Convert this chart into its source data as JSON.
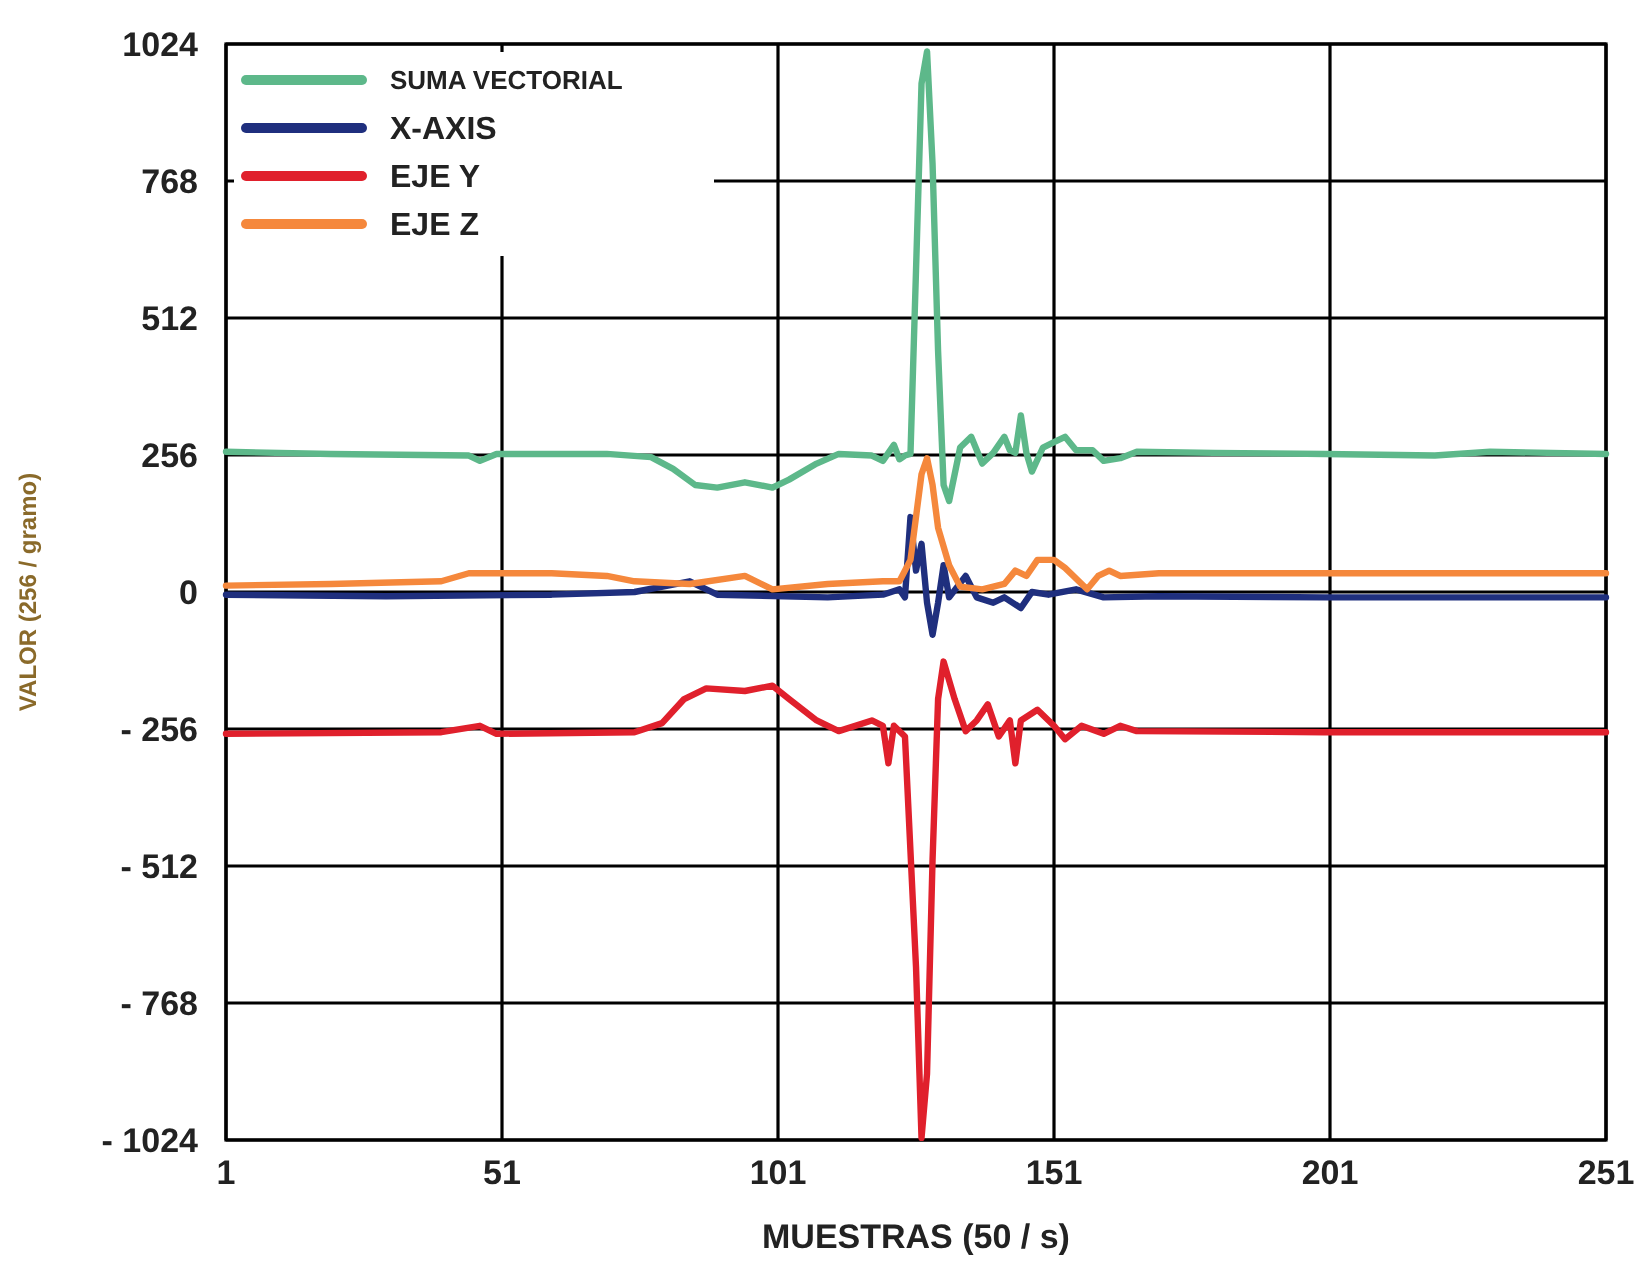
{
  "chart_data": {
    "type": "line",
    "xlabel": "MUESTRAS (50 / s)",
    "ylabel": "VALOR (256 / gramo)",
    "xlim": [
      1,
      251
    ],
    "xticks": [
      1,
      51,
      101,
      151,
      201,
      251
    ],
    "ylim": [
      -1024,
      1024
    ],
    "yticks": [
      {
        "value": -1024,
        "label": "- 1024"
      },
      {
        "value": -768,
        "label": "- 768"
      },
      {
        "value": -512,
        "label": "- 512"
      },
      {
        "value": -256,
        "label": "- 256"
      },
      0,
      256,
      512,
      768,
      1024
    ],
    "grid": true,
    "legend": "top left",
    "line_style": "solid",
    "marker": "none",
    "series": [
      {
        "name": "SUMA VECTORIAL",
        "color": "#5db88a",
        "x": [
          1,
          20,
          45,
          47,
          50,
          70,
          78,
          82,
          86,
          90,
          95,
          100,
          103,
          108,
          112,
          118,
          120,
          122,
          123,
          124,
          125,
          126,
          127,
          128,
          129,
          130,
          131,
          132,
          134,
          136,
          138,
          140,
          142,
          143,
          144,
          145,
          146,
          147,
          149,
          151,
          153,
          155,
          158,
          160,
          163,
          166,
          180,
          200,
          220,
          230,
          251
        ],
        "values": [
          262,
          258,
          255,
          245,
          258,
          258,
          252,
          230,
          200,
          195,
          205,
          195,
          210,
          240,
          258,
          255,
          245,
          275,
          248,
          255,
          258,
          600,
          950,
          1010,
          800,
          450,
          200,
          170,
          270,
          290,
          240,
          260,
          290,
          265,
          260,
          330,
          260,
          225,
          270,
          280,
          290,
          265,
          265,
          245,
          250,
          262,
          260,
          258,
          255,
          262,
          258
        ]
      },
      {
        "name": "X-AXIS",
        "color": "#1f2f7e",
        "x": [
          1,
          30,
          60,
          75,
          85,
          90,
          110,
          120,
          123,
          124,
          125,
          126,
          127,
          128,
          129,
          130,
          131,
          132,
          135,
          137,
          140,
          142,
          145,
          147,
          150,
          155,
          160,
          170,
          200,
          251
        ],
        "values": [
          -5,
          -8,
          -5,
          0,
          20,
          -5,
          -10,
          -5,
          5,
          -10,
          140,
          40,
          90,
          -20,
          -80,
          -20,
          50,
          -10,
          30,
          -10,
          -20,
          -10,
          -30,
          0,
          -5,
          5,
          -10,
          -8,
          -10,
          -10
        ]
      },
      {
        "name": "EJE Y",
        "color": "#e0202c",
        "x": [
          1,
          40,
          47,
          50,
          75,
          80,
          84,
          88,
          95,
          100,
          103,
          108,
          112,
          118,
          120,
          121,
          122,
          124,
          126,
          127,
          128,
          129,
          130,
          131,
          133,
          135,
          137,
          139,
          141,
          143,
          144,
          145,
          148,
          151,
          153,
          156,
          160,
          163,
          166,
          200,
          251
        ],
        "values": [
          -265,
          -262,
          -250,
          -265,
          -262,
          -245,
          -200,
          -180,
          -185,
          -175,
          -200,
          -240,
          -260,
          -240,
          -250,
          -320,
          -250,
          -270,
          -700,
          -1020,
          -900,
          -500,
          -200,
          -130,
          -200,
          -260,
          -240,
          -210,
          -270,
          -240,
          -320,
          -240,
          -220,
          -250,
          -275,
          -250,
          -265,
          -250,
          -260,
          -262,
          -262
        ]
      },
      {
        "name": "EJE Z",
        "color": "#f5883c",
        "x": [
          1,
          20,
          40,
          45,
          60,
          70,
          75,
          85,
          95,
          100,
          110,
          120,
          123,
          125,
          127,
          128,
          129,
          130,
          132,
          134,
          138,
          142,
          144,
          146,
          148,
          151,
          153,
          157,
          159,
          161,
          163,
          170,
          200,
          251
        ],
        "values": [
          12,
          15,
          20,
          35,
          35,
          30,
          20,
          15,
          30,
          5,
          15,
          20,
          20,
          60,
          220,
          250,
          200,
          120,
          50,
          10,
          5,
          15,
          40,
          30,
          60,
          60,
          45,
          5,
          30,
          40,
          30,
          35,
          35,
          35
        ]
      }
    ]
  }
}
